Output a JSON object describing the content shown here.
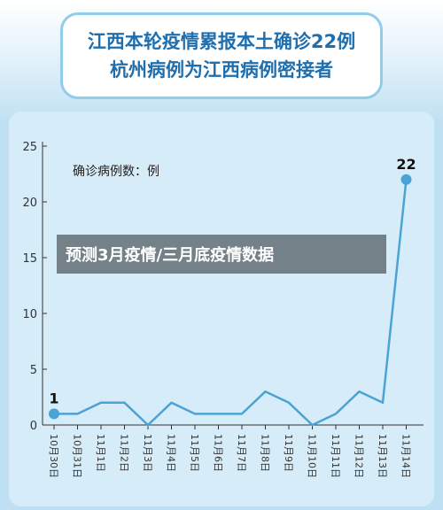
{
  "header": {
    "title_line1": "江西本轮疫情累报本土确诊22例",
    "title_line2": "杭州病例为江西病例密接者"
  },
  "banner": {
    "text": "预测3月疫情/三月底疫情数据"
  },
  "colors": {
    "line": "#4aa3d4",
    "title": "#1f6fae",
    "panel": "#d6edf9",
    "border": "#8fcdeb"
  },
  "chart_data": {
    "type": "line",
    "ylabel": "确诊病例数：例",
    "ylim": [
      0,
      25
    ],
    "yticks": [
      0,
      5,
      10,
      15,
      20,
      25
    ],
    "categories": [
      "10月30日",
      "10月31日",
      "11月1日",
      "11月2日",
      "11月3日",
      "11月4日",
      "11月5日",
      "11月6日",
      "11月7日",
      "11月8日",
      "11月9日",
      "11月10日",
      "11月11日",
      "11月12日",
      "11月13日",
      "11月14日"
    ],
    "values": [
      1,
      1,
      2,
      2,
      0,
      2,
      1,
      1,
      1,
      3,
      2,
      0,
      1,
      3,
      2,
      22
    ],
    "data_labels": [
      {
        "index": 0,
        "text": "1"
      },
      {
        "index": 15,
        "text": "22"
      }
    ],
    "grid": false
  }
}
